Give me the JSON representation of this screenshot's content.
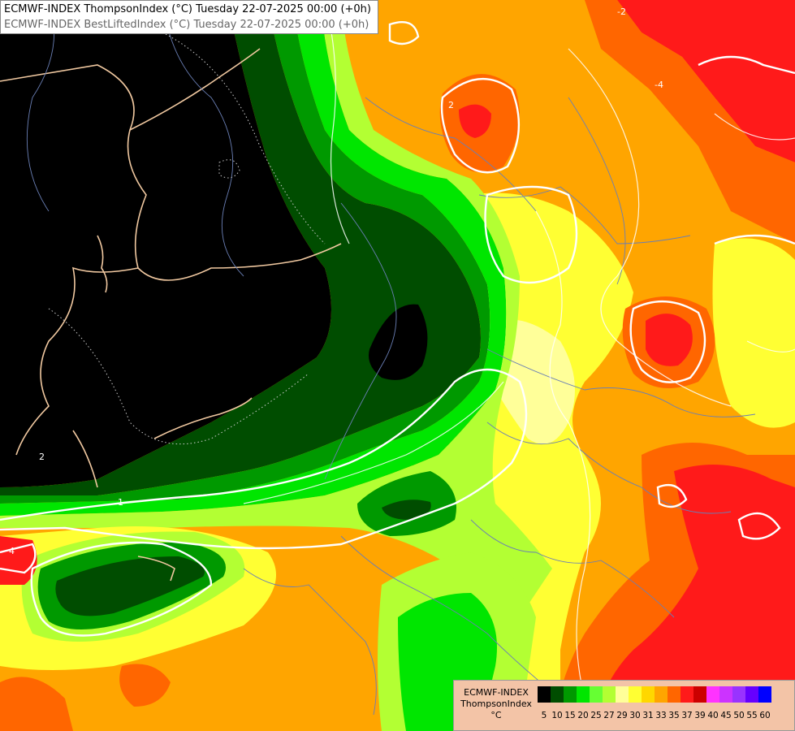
{
  "title": {
    "line1": "ECMWF-INDEX ThompsonIndex (°C) Tuesday 22-07-2025 00:00 (+0h)",
    "line2": "ECMWF-INDEX BestLiftedIndex (°C) Tuesday 22-07-2025 00:00 (+0h)"
  },
  "legend": {
    "model": "ECMWF-INDEX",
    "parameter": "ThompsonIndex",
    "unit": "°C",
    "colors": [
      "#000000",
      "#000000",
      "#000000",
      "#000000",
      "#004d00",
      "#009900",
      "#00e600",
      "#66ff33",
      "#b3ff33",
      "#ffff99",
      "#ffff33",
      "#ffd700",
      "#ffa500",
      "#ff6600",
      "#ff1a1a",
      "#cc0000",
      "#ff33ff",
      "#cc33ff",
      "#9933ff",
      "#6600ff",
      "#0000ff"
    ],
    "ticks": [
      "5",
      "10",
      "15",
      "20",
      "25",
      "27",
      "29",
      "30",
      "31",
      "33",
      "35",
      "37",
      "39",
      "40",
      "45",
      "50",
      "55",
      "60"
    ]
  },
  "contour_labels": {
    "l1": "-2",
    "l2": "2",
    "l3": "4",
    "l4": "-4",
    "l5": "2",
    "l6": "1"
  }
}
